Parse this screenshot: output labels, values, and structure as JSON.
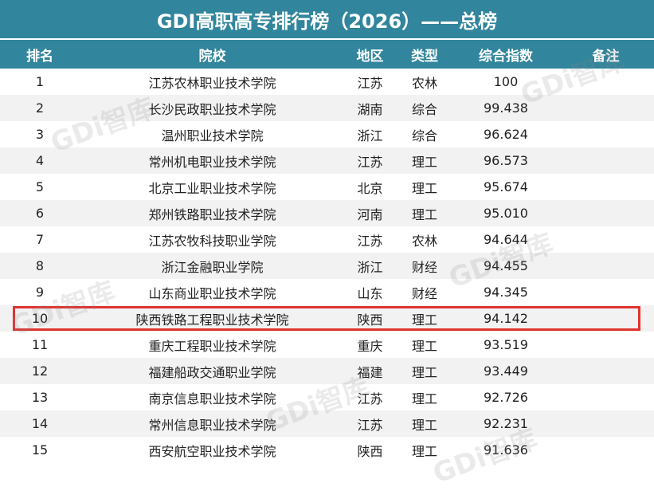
{
  "title": "GDI高职高专排行榜（2026）——总榜",
  "headers": {
    "rank": "排名",
    "school": "院校",
    "region": "地区",
    "type": "类型",
    "index": "综合指数",
    "note": "备注"
  },
  "watermark": "GDi智库",
  "highlighted_rank": "10",
  "colors": {
    "header": "#31859c",
    "highlight": "#e0332f"
  },
  "rows": [
    {
      "rank": "1",
      "school": "江苏农林职业技术学院",
      "region": "江苏",
      "type": "农林",
      "index": "100",
      "note": ""
    },
    {
      "rank": "2",
      "school": "长沙民政职业技术学院",
      "region": "湖南",
      "type": "综合",
      "index": "99.438",
      "note": ""
    },
    {
      "rank": "3",
      "school": "温州职业技术学院",
      "region": "浙江",
      "type": "综合",
      "index": "96.624",
      "note": ""
    },
    {
      "rank": "4",
      "school": "常州机电职业技术学院",
      "region": "江苏",
      "type": "理工",
      "index": "96.573",
      "note": ""
    },
    {
      "rank": "5",
      "school": "北京工业职业技术学院",
      "region": "北京",
      "type": "理工",
      "index": "95.674",
      "note": ""
    },
    {
      "rank": "6",
      "school": "郑州铁路职业技术学院",
      "region": "河南",
      "type": "理工",
      "index": "95.010",
      "note": ""
    },
    {
      "rank": "7",
      "school": "江苏农牧科技职业学院",
      "region": "江苏",
      "type": "农林",
      "index": "94.644",
      "note": ""
    },
    {
      "rank": "8",
      "school": "浙江金融职业学院",
      "region": "浙江",
      "type": "财经",
      "index": "94.455",
      "note": ""
    },
    {
      "rank": "9",
      "school": "山东商业职业技术学院",
      "region": "山东",
      "type": "财经",
      "index": "94.345",
      "note": ""
    },
    {
      "rank": "10",
      "school": "陕西铁路工程职业技术学院",
      "region": "陕西",
      "type": "理工",
      "index": "94.142",
      "note": ""
    },
    {
      "rank": "11",
      "school": "重庆工程职业技术学院",
      "region": "重庆",
      "type": "理工",
      "index": "93.519",
      "note": ""
    },
    {
      "rank": "12",
      "school": "福建船政交通职业学院",
      "region": "福建",
      "type": "理工",
      "index": "93.449",
      "note": ""
    },
    {
      "rank": "13",
      "school": "南京信息职业技术学院",
      "region": "江苏",
      "type": "理工",
      "index": "92.726",
      "note": ""
    },
    {
      "rank": "14",
      "school": "常州信息职业技术学院",
      "region": "江苏",
      "type": "理工",
      "index": "92.231",
      "note": ""
    },
    {
      "rank": "15",
      "school": "西安航空职业技术学院",
      "region": "陕西",
      "type": "理工",
      "index": "91.636",
      "note": ""
    }
  ]
}
